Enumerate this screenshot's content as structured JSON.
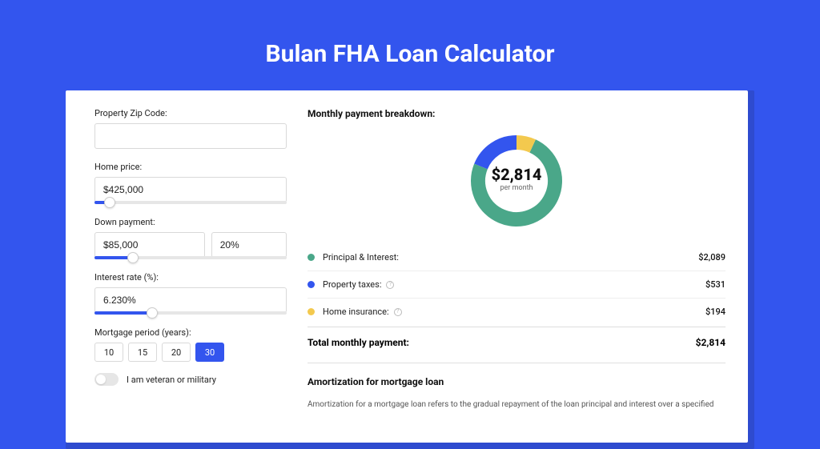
{
  "page": {
    "title": "Bulan FHA Loan Calculator",
    "background_color": "#3355ee",
    "panel_shadow_color": "#2e4bcf",
    "panel_background": "#ffffff"
  },
  "form": {
    "zip_label": "Property Zip Code:",
    "zip_value": "",
    "price_label": "Home price:",
    "price_value": "$425,000",
    "price_slider_pct": 8,
    "down_label": "Down payment:",
    "down_value": "$85,000",
    "down_pct_value": "20%",
    "down_slider_pct": 20,
    "rate_label": "Interest rate (%):",
    "rate_value": "6.230%",
    "rate_slider_pct": 30,
    "period_label": "Mortgage period (years):",
    "periods": [
      "10",
      "15",
      "20",
      "30"
    ],
    "period_active_index": 3,
    "veteran_label": "I am veteran or military"
  },
  "breakdown": {
    "title": "Monthly payment breakdown:",
    "center_amount": "$2,814",
    "center_sub": "per month",
    "donut": {
      "segments": [
        {
          "color": "#4aa789",
          "pct": 74.2
        },
        {
          "color": "#3355ee",
          "pct": 18.9
        },
        {
          "color": "#f3c94e",
          "pct": 6.9
        }
      ],
      "track_color": "#eeeeee"
    },
    "items": [
      {
        "color": "#4aa789",
        "label": "Principal & Interest:",
        "value": "$2,089",
        "info": false
      },
      {
        "color": "#3355ee",
        "label": "Property taxes:",
        "value": "$531",
        "info": true
      },
      {
        "color": "#f3c94e",
        "label": "Home insurance:",
        "value": "$194",
        "info": true
      }
    ],
    "total_label": "Total monthly payment:",
    "total_value": "$2,814"
  },
  "amortization": {
    "title": "Amortization for mortgage loan",
    "text": "Amortization for a mortgage loan refers to the gradual repayment of the loan principal and interest over a specified"
  }
}
